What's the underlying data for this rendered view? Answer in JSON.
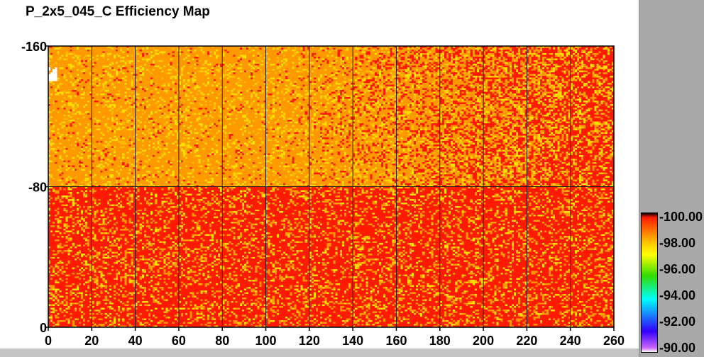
{
  "chart_data": {
    "type": "heatmap",
    "title": "P_2x5_045_C Efficiency Map",
    "x_ticks": [
      "0",
      "20",
      "40",
      "60",
      "80",
      "100",
      "120",
      "140",
      "160",
      "180",
      "200",
      "220",
      "240",
      "260"
    ],
    "y_ticks": [
      "0",
      "-80",
      "-160"
    ],
    "xlim": [
      0,
      260
    ],
    "ylim": [
      0,
      160
    ],
    "grid": true,
    "grid_x_step": 20,
    "grid_y_step": 80,
    "colorbar": {
      "labels": [
        "-100.00",
        "-98.00",
        "-96.00",
        "-94.00",
        "-92.00",
        "-90.00"
      ],
      "range": [
        90,
        100
      ],
      "colors": {
        "100": "#000000",
        "99": "#ff1a00",
        "98": "#ffcc00",
        "97": "#ffff00",
        "96": "#33dd00",
        "94": "#00ffff",
        "92": "#3300ff",
        "90": "#ffffff"
      }
    },
    "regions": [
      {
        "name": "upper-half",
        "y_range": [
          80,
          160
        ],
        "typical_value": 98.3,
        "dominant_color": "#ff9900"
      },
      {
        "name": "lower-half",
        "y_range": [
          0,
          80
        ],
        "typical_value": 99.0,
        "dominant_color": "#ff1a00"
      }
    ],
    "dead_spot": {
      "x_range": [
        0,
        4
      ],
      "y_range": [
        140,
        148
      ],
      "value": "none"
    }
  }
}
